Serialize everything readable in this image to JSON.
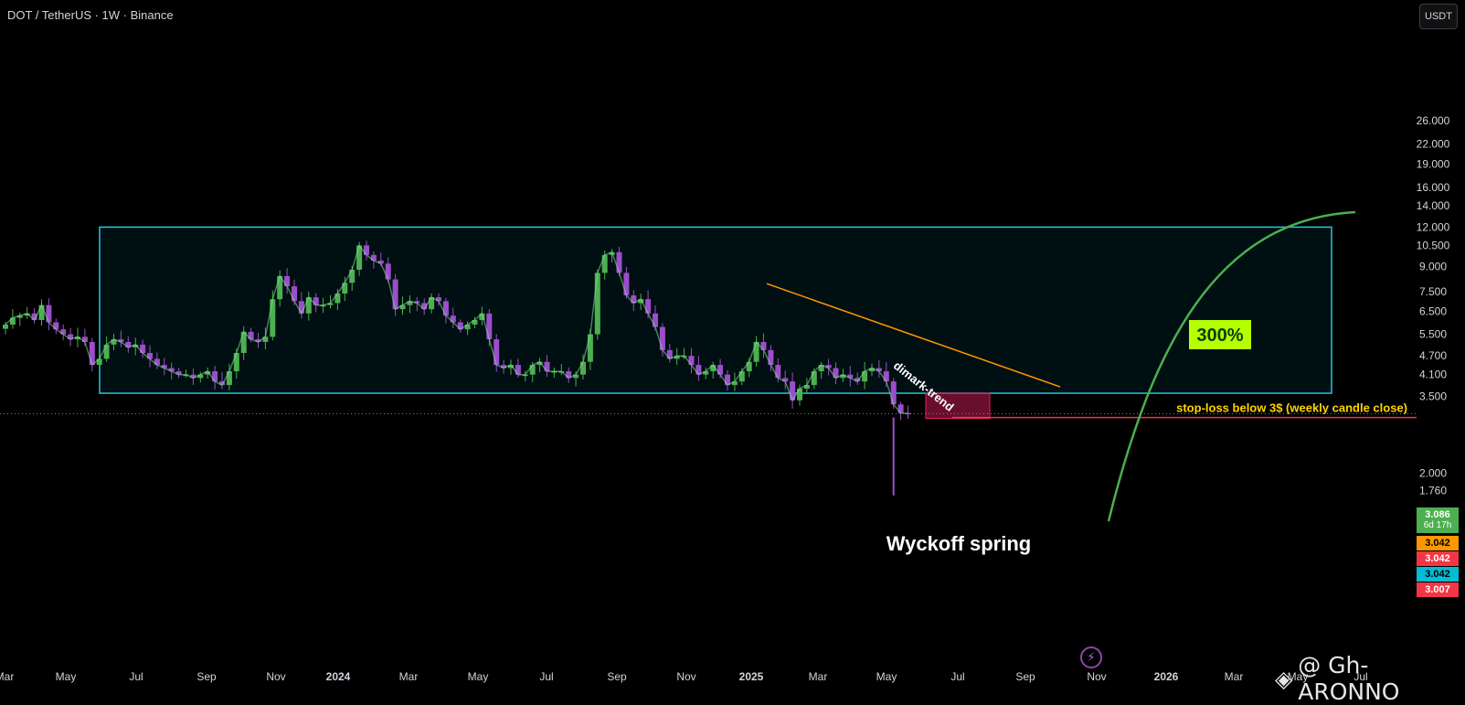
{
  "header": {
    "symbol": "DOT / TetherUS · 1W · Binance",
    "currency": "USDT"
  },
  "chart_data": {
    "type": "candlestick",
    "symbol": "DOT/USDT",
    "timeframe": "1W",
    "exchange": "Binance",
    "y_scale": "log",
    "y_ticks": [
      26.0,
      22.0,
      19.0,
      16.0,
      14.0,
      12.0,
      10.5,
      9.0,
      7.5,
      6.5,
      5.5,
      4.7,
      4.1,
      3.5,
      2.0,
      1.76
    ],
    "y_tick_labels": [
      "26.000",
      "22.000",
      "19.000",
      "16.000",
      "14.000",
      "12.000",
      "10.500",
      "9.000",
      "7.500",
      "6.500",
      "5.500",
      "4.700",
      "4.100",
      "3.500",
      "2.000",
      "1.760"
    ],
    "x_ticks": [
      "Mar",
      "May",
      "Jul",
      "Sep",
      "Nov",
      "2024",
      "Mar",
      "May",
      "Jul",
      "Sep",
      "Nov",
      "2025",
      "Mar",
      "May",
      "Jul",
      "Sep",
      "Nov",
      "2026",
      "Mar",
      "May",
      "Jul"
    ],
    "approx_weekly_closes": [
      5.9,
      6.2,
      6.3,
      6.4,
      6.1,
      6.8,
      6.0,
      5.7,
      5.5,
      5.3,
      5.4,
      5.2,
      4.4,
      4.6,
      5.1,
      5.3,
      5.2,
      5.0,
      5.1,
      4.8,
      4.6,
      4.4,
      4.3,
      4.2,
      4.1,
      4.1,
      4.0,
      4.1,
      4.2,
      3.9,
      3.8,
      4.2,
      4.8,
      5.6,
      5.3,
      5.2,
      5.4,
      7.1,
      8.4,
      7.8,
      7.0,
      6.4,
      7.2,
      6.8,
      6.8,
      6.9,
      7.4,
      8.0,
      8.8,
      10.5,
      9.8,
      9.4,
      9.2,
      8.2,
      6.6,
      6.8,
      7.0,
      6.9,
      6.6,
      7.2,
      7.0,
      6.3,
      6.0,
      5.7,
      5.9,
      6.1,
      6.4,
      5.3,
      4.4,
      4.3,
      4.4,
      4.1,
      4.1,
      4.4,
      4.5,
      4.2,
      4.2,
      4.2,
      4.0,
      4.1,
      4.5,
      5.5,
      8.6,
      9.8,
      10.0,
      8.6,
      7.3,
      6.9,
      7.1,
      6.4,
      5.8,
      4.9,
      4.6,
      4.7,
      4.7,
      4.4,
      4.1,
      4.2,
      4.4,
      4.1,
      3.8,
      3.9,
      4.2,
      4.5,
      5.2,
      4.9,
      4.4,
      4.0,
      3.9,
      3.4,
      3.7,
      3.8,
      4.2,
      4.4,
      4.3,
      4.0,
      4.1,
      4.0,
      3.9,
      4.2,
      4.3,
      4.2,
      3.9,
      3.3,
      3.1,
      3.09
    ],
    "last_price": 3.086,
    "annotations": {
      "range_box": {
        "top": 12.0,
        "bottom": 3.58
      },
      "trendline_label": "dimark-trend",
      "spring_label": "Wyckoff spring",
      "target_label": "300%",
      "stop_loss_label": "stop-loss below 3$ (weekly candle close)",
      "stop_loss_level": 3.0
    },
    "price_tags": [
      {
        "value": "3.086",
        "sub": "6d 17h",
        "color": "#4caf50"
      },
      {
        "value": "3.042",
        "color": "#ff9800"
      },
      {
        "value": "3.042",
        "color": "#f23645"
      },
      {
        "value": "3.042",
        "color": "#00bcd4"
      },
      {
        "value": "3.007",
        "color": "#f23645"
      }
    ],
    "colors": {
      "up": "#4caf50",
      "down": "#9c4dcc",
      "box": "#26c6da",
      "trend": "#ff9800",
      "stoploss": "#f23645",
      "projection": "#4caf50",
      "label_bg": "#b6ff00"
    }
  },
  "watermark": {
    "text": "@ Gh-ARONNO"
  }
}
